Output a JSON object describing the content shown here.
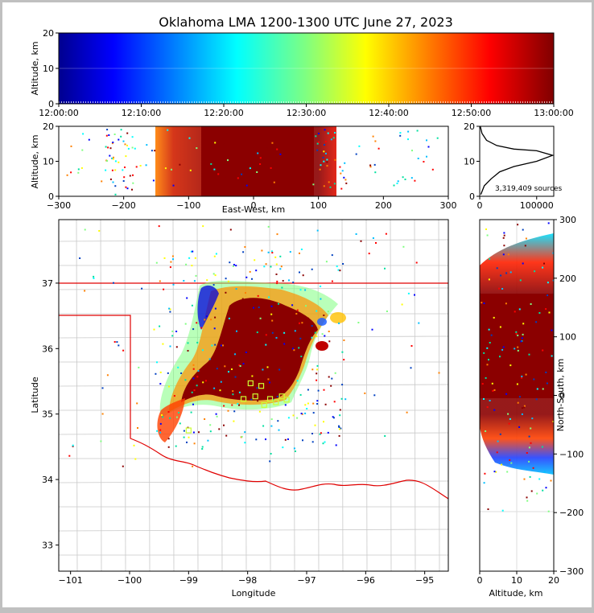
{
  "chart_data": [
    {
      "type": "scatter",
      "panel": "time-altitude",
      "title": "Oklahoma LMA 1200-1300 UTC June 27, 2023",
      "ylabel": "Altitude, km",
      "ylim": [
        0,
        20
      ],
      "yticks": [
        "0",
        "10",
        "20"
      ],
      "xticks": [
        "12:00:00",
        "12:10:00",
        "12:20:00",
        "12:30:00",
        "12:40:00",
        "12:50:00",
        "13:00:00"
      ],
      "color_encoding": "time (blue early to dark red late)",
      "note": "near-continuous source density 0-20 km across entire hour"
    },
    {
      "type": "scatter",
      "panel": "east-west-altitude",
      "xlabel": "East-West, km",
      "ylabel": "Altitude, km",
      "xlim": [
        -300,
        300
      ],
      "ylim": [
        0,
        20
      ],
      "xticks": [
        "−300",
        "−200",
        "−100",
        "0",
        "100",
        "200",
        "300"
      ],
      "yticks": [
        "0",
        "10",
        "20"
      ],
      "dense_region_km": [
        -150,
        140
      ]
    },
    {
      "type": "line",
      "panel": "altitude-histogram",
      "xlim": [
        0,
        130000
      ],
      "ylim": [
        0,
        20
      ],
      "xticks": [
        "0",
        "100000"
      ],
      "yticks": [
        "0",
        "10",
        "20"
      ],
      "annotation": "3,319,409 sources",
      "profile_points": [
        [
          2000,
          0.5
        ],
        [
          8000,
          3
        ],
        [
          20000,
          5
        ],
        [
          35000,
          7
        ],
        [
          60000,
          8.5
        ],
        [
          100000,
          10
        ],
        [
          128000,
          11.7
        ],
        [
          100000,
          13
        ],
        [
          60000,
          13.5
        ],
        [
          30000,
          14.5
        ],
        [
          12000,
          16
        ],
        [
          4000,
          18
        ],
        [
          1000,
          20
        ]
      ]
    },
    {
      "type": "scatter",
      "panel": "plan-view",
      "xlabel": "Longitude",
      "ylabel": "Latitude",
      "xlim": [
        -101.2,
        -94.6
      ],
      "ylim": [
        32.6,
        37.97
      ],
      "xticks": [
        "−101",
        "−100",
        "−99",
        "−98",
        "−97",
        "−96",
        "−95"
      ],
      "yticks": [
        "33",
        "34",
        "35",
        "36",
        "37"
      ],
      "stations": [
        [
          -97.95,
          35.47
        ],
        [
          -97.77,
          35.43
        ],
        [
          -97.87,
          35.27
        ],
        [
          -98.07,
          35.23
        ],
        [
          -97.62,
          35.23
        ],
        [
          -97.42,
          35.27
        ],
        [
          -97.72,
          35.14
        ],
        [
          -97.52,
          35.18
        ],
        [
          -97.34,
          35.22
        ],
        [
          -99.0,
          34.75
        ]
      ]
    },
    {
      "type": "scatter",
      "panel": "altitude-north-south",
      "xlabel": "Altitude, km",
      "ylabel": "North-South, km",
      "xlim": [
        0,
        20
      ],
      "ylim": [
        -300,
        300
      ],
      "xticks": [
        "0",
        "10",
        "20"
      ],
      "yticks": [
        "−300",
        "−200",
        "−100",
        "0",
        "100",
        "200",
        "300"
      ],
      "dense_region_km": [
        -30,
        160
      ]
    }
  ]
}
